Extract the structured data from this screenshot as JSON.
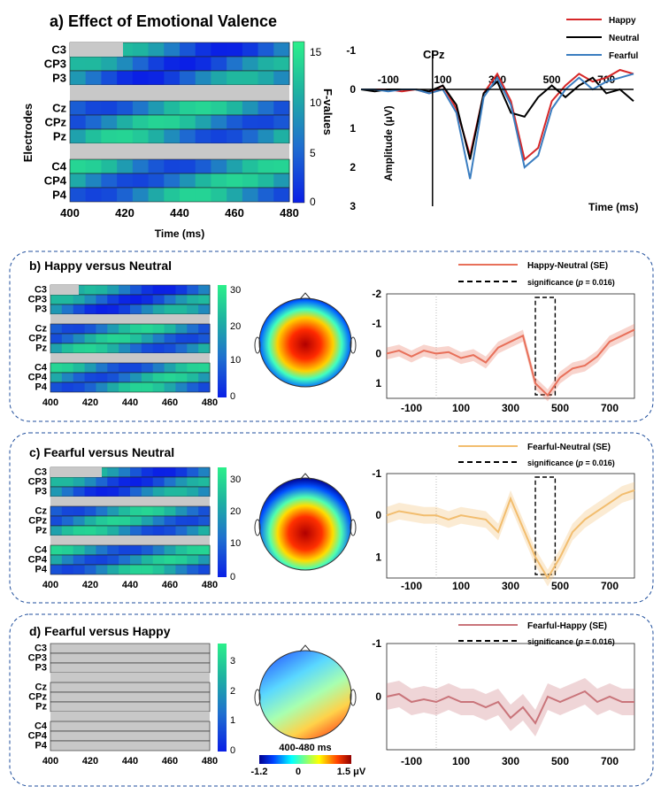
{
  "panel_a": {
    "title": "a) Effect of Emotional Valence",
    "heatmap": {
      "electrodes": [
        "C3",
        "CP3",
        "P3",
        "Cz",
        "CPz",
        "Pz",
        "C4",
        "CP4",
        "P4"
      ],
      "xticks": [
        "400",
        "420",
        "440",
        "460",
        "480"
      ],
      "xlabel": "Time (ms)",
      "ylabel": "Electrodes",
      "colorbar_ticks": [
        "0",
        "5",
        "10",
        "15"
      ],
      "colorbar_label": "F-values"
    },
    "erp": {
      "channel": "CPz",
      "xticks": [
        "-100",
        "100",
        "300",
        "500",
        "700"
      ],
      "yticks": [
        "-1",
        "0",
        "1",
        "2",
        "3"
      ],
      "xlabel": "Time (ms)",
      "ylabel": "Amplitude (μV)",
      "legend": [
        "Happy",
        "Neutral",
        "Fearful"
      ]
    }
  },
  "panel_b": {
    "title": "b) Happy versus Neutral",
    "heat_xticks": [
      "400",
      "420",
      "440",
      "460",
      "480"
    ],
    "cbar_ticks": [
      "0",
      "10",
      "20",
      "30"
    ],
    "legend_diff": "Happy-Neutral (SE)",
    "legend_sig": "significance (",
    "legend_p": "p",
    "legend_sig_val": " = 0.016)",
    "yticks": [
      "-2",
      "-1",
      "0",
      "1"
    ],
    "xticks": [
      "-100",
      "100",
      "300",
      "500",
      "700"
    ]
  },
  "panel_c": {
    "title": "c) Fearful versus Neutral",
    "heat_xticks": [
      "400",
      "420",
      "440",
      "460",
      "480"
    ],
    "cbar_ticks": [
      "0",
      "10",
      "20",
      "30"
    ],
    "legend_diff": "Fearful-Neutral (SE)",
    "legend_sig": "significance (",
    "legend_p": "p",
    "legend_sig_val": " = 0.016)",
    "yticks": [
      "-1",
      "0",
      "1"
    ],
    "xticks": [
      "-100",
      "100",
      "300",
      "500",
      "700"
    ]
  },
  "panel_d": {
    "title": "d) Fearful versus Happy",
    "heat_xticks": [
      "400",
      "420",
      "440",
      "460",
      "480"
    ],
    "cbar_ticks": [
      "0",
      "1",
      "2",
      "3"
    ],
    "legend_diff": "Fearful-Happy (SE)",
    "legend_sig": "significance (",
    "legend_p": "p",
    "legend_sig_val": " = 0.016)",
    "yticks": [
      "-1",
      "0"
    ],
    "xticks": [
      "-100",
      "100",
      "300",
      "500",
      "700"
    ],
    "topo_window": "400-480 ms",
    "topo_ticks": [
      "-1.2",
      "0",
      "1.5 μV"
    ]
  },
  "chart_data": [
    {
      "type": "heatmap",
      "title": "a) Effect of Emotional Valence",
      "xlabel": "Time (ms)",
      "ylabel": "Electrodes",
      "xlim": [
        400,
        480
      ],
      "clim": [
        0,
        16
      ],
      "rows": [
        "C3",
        "CP3",
        "P3",
        "Cz",
        "CPz",
        "Pz",
        "C4",
        "CP4",
        "P4"
      ],
      "row_means": [
        8,
        7,
        5,
        8,
        10,
        12,
        13,
        11,
        9
      ],
      "nonsignificant": [
        {
          "row": "C3",
          "x": [
            400,
            419
          ]
        }
      ]
    },
    {
      "type": "line",
      "title": "CPz",
      "xlabel": "Time (ms)",
      "ylabel": "Amplitude (μV)",
      "xlim": [
        -200,
        800
      ],
      "ylim": [
        -1,
        3
      ],
      "y_inverted": true,
      "x": [
        -200,
        -150,
        -100,
        -50,
        0,
        50,
        100,
        150,
        200,
        250,
        300,
        350,
        400,
        450,
        500,
        550,
        600,
        650,
        700,
        750,
        800
      ],
      "series": [
        {
          "name": "Happy",
          "color": "#d62728",
          "values": [
            0,
            0,
            0,
            0.05,
            0,
            0.1,
            -0.1,
            0.5,
            1.7,
            0.1,
            -0.4,
            0.3,
            1.8,
            1.5,
            0.3,
            -0.1,
            -0.4,
            -0.2,
            -0.3,
            -0.5,
            -0.4
          ]
        },
        {
          "name": "Neutral",
          "color": "#000000",
          "values": [
            0,
            0.05,
            0,
            0,
            0,
            0.05,
            -0.1,
            0.4,
            1.8,
            0.1,
            -0.2,
            0.6,
            0.7,
            0.2,
            -0.1,
            0.2,
            -0.1,
            -0.3,
            0.1,
            0,
            0.3
          ]
        },
        {
          "name": "Fearful",
          "color": "#3a7dc0",
          "values": [
            0,
            0,
            0.05,
            0,
            0,
            0.1,
            0,
            0.6,
            2.3,
            0.2,
            -0.3,
            0.4,
            2.0,
            1.7,
            0.5,
            0,
            -0.3,
            0,
            -0.2,
            -0.3,
            -0.4
          ]
        }
      ]
    },
    {
      "type": "area",
      "title": "b) Happy versus Neutral",
      "xlim": [
        -200,
        800
      ],
      "ylim": [
        -2,
        1.5
      ],
      "y_inverted": true,
      "significance_window": [
        400,
        480
      ],
      "x": [
        -200,
        -150,
        -100,
        -50,
        0,
        50,
        100,
        150,
        200,
        250,
        300,
        350,
        400,
        450,
        500,
        550,
        600,
        650,
        700,
        750,
        800
      ],
      "series": [
        {
          "name": "Happy-Neutral (SE)",
          "color": "#e8705a",
          "values": [
            0,
            -0.1,
            0.1,
            -0.1,
            0,
            -0.05,
            0.15,
            0.05,
            0.3,
            -0.2,
            -0.4,
            -0.6,
            1.0,
            1.4,
            0.8,
            0.5,
            0.4,
            0.1,
            -0.4,
            -0.6,
            -0.8
          ],
          "se": 0.2
        }
      ]
    },
    {
      "type": "area",
      "title": "c) Fearful versus Neutral",
      "xlim": [
        -200,
        800
      ],
      "ylim": [
        -1,
        1.5
      ],
      "y_inverted": true,
      "significance_window": [
        400,
        480
      ],
      "x": [
        -200,
        -150,
        -100,
        -50,
        0,
        50,
        100,
        150,
        200,
        250,
        300,
        350,
        400,
        450,
        500,
        550,
        600,
        650,
        700,
        750,
        800
      ],
      "series": [
        {
          "name": "Fearful-Neutral (SE)",
          "color": "#f2bd6e",
          "values": [
            0,
            -0.1,
            -0.05,
            0,
            0,
            0.1,
            0,
            0.05,
            0.1,
            0.4,
            -0.4,
            0.3,
            1.0,
            1.5,
            1.0,
            0.4,
            0.1,
            -0.1,
            -0.3,
            -0.5,
            -0.6
          ],
          "se": 0.2
        }
      ]
    },
    {
      "type": "area",
      "title": "d) Fearful versus Happy",
      "xlim": [
        -200,
        800
      ],
      "ylim": [
        -1,
        1
      ],
      "y_inverted": true,
      "x": [
        -200,
        -150,
        -100,
        -50,
        0,
        50,
        100,
        150,
        200,
        250,
        300,
        350,
        400,
        450,
        500,
        550,
        600,
        650,
        700,
        750,
        800
      ],
      "series": [
        {
          "name": "Fearful-Happy (SE)",
          "color": "#c9747a",
          "values": [
            0,
            -0.05,
            0.1,
            0.05,
            0.1,
            0,
            0.1,
            0.1,
            0.2,
            0.1,
            0.4,
            0.2,
            0.5,
            0,
            0.1,
            0,
            -0.1,
            0.1,
            0,
            0.1,
            0.1
          ],
          "se": 0.25
        }
      ]
    }
  ]
}
